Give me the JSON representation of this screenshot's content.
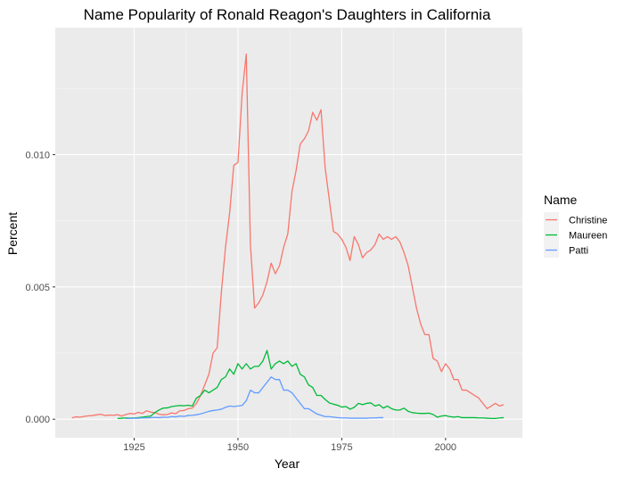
{
  "chart_data": {
    "type": "line",
    "title": "Name Popularity of Ronald Reagon's Daughters in California",
    "xlabel": "Year",
    "ylabel": "Percent",
    "xlim": [
      1906.0,
      2018.5
    ],
    "ylim": [
      -0.0007,
      0.0148
    ],
    "xticks": [
      1925,
      1950,
      1975,
      2000
    ],
    "xtick_labels": [
      "1925",
      "1950",
      "1975",
      "2000"
    ],
    "yticks": [
      0.0,
      0.005,
      0.01
    ],
    "ytick_labels": [
      "0.000",
      "0.005",
      "0.010"
    ],
    "grid": true,
    "legend": {
      "title": "Name",
      "position": "right"
    },
    "series": [
      {
        "name": "Christine",
        "color": "#F8766D",
        "points": [
          [
            1910,
            5e-05
          ],
          [
            1911,
            9e-05
          ],
          [
            1912,
            8e-05
          ],
          [
            1913,
            0.00011
          ],
          [
            1914,
            0.00013
          ],
          [
            1915,
            0.00014
          ],
          [
            1916,
            0.00017
          ],
          [
            1917,
            0.00019
          ],
          [
            1918,
            0.00014
          ],
          [
            1919,
            0.00016
          ],
          [
            1920,
            0.00015
          ],
          [
            1921,
            0.00017
          ],
          [
            1922,
            0.00012
          ],
          [
            1923,
            0.00018
          ],
          [
            1924,
            0.00022
          ],
          [
            1925,
            0.0002
          ],
          [
            1926,
            0.00026
          ],
          [
            1927,
            0.00022
          ],
          [
            1928,
            0.00032
          ],
          [
            1929,
            0.00027
          ],
          [
            1930,
            0.00025
          ],
          [
            1931,
            0.00019
          ],
          [
            1932,
            0.00017
          ],
          [
            1933,
            0.00018
          ],
          [
            1934,
            0.00024
          ],
          [
            1935,
            0.00021
          ],
          [
            1936,
            0.00032
          ],
          [
            1937,
            0.00033
          ],
          [
            1938,
            0.0004
          ],
          [
            1939,
            0.00042
          ],
          [
            1940,
            0.0006
          ],
          [
            1941,
            0.0009
          ],
          [
            1942,
            0.0013
          ],
          [
            1943,
            0.0017
          ],
          [
            1944,
            0.0025
          ],
          [
            1945,
            0.0027
          ],
          [
            1946,
            0.0048
          ],
          [
            1947,
            0.0065
          ],
          [
            1948,
            0.0078
          ],
          [
            1949,
            0.0096
          ],
          [
            1950,
            0.0097
          ],
          [
            1951,
            0.0123
          ],
          [
            1952,
            0.0138
          ],
          [
            1953,
            0.0066
          ],
          [
            1954,
            0.0042
          ],
          [
            1955,
            0.0044
          ],
          [
            1956,
            0.0047
          ],
          [
            1957,
            0.0052
          ],
          [
            1958,
            0.0059
          ],
          [
            1959,
            0.0055
          ],
          [
            1960,
            0.0058
          ],
          [
            1961,
            0.0065
          ],
          [
            1962,
            0.007
          ],
          [
            1963,
            0.0086
          ],
          [
            1964,
            0.0094
          ],
          [
            1965,
            0.0104
          ],
          [
            1966,
            0.0106
          ],
          [
            1967,
            0.0109
          ],
          [
            1968,
            0.0116
          ],
          [
            1969,
            0.0113
          ],
          [
            1970,
            0.0117
          ],
          [
            1971,
            0.0095
          ],
          [
            1972,
            0.0083
          ],
          [
            1973,
            0.0071
          ],
          [
            1974,
            0.007
          ],
          [
            1975,
            0.0068
          ],
          [
            1976,
            0.0065
          ],
          [
            1977,
            0.006
          ],
          [
            1978,
            0.0069
          ],
          [
            1979,
            0.0066
          ],
          [
            1980,
            0.0061
          ],
          [
            1981,
            0.0063
          ],
          [
            1982,
            0.0064
          ],
          [
            1983,
            0.0066
          ],
          [
            1984,
            0.007
          ],
          [
            1985,
            0.0068
          ],
          [
            1986,
            0.0069
          ],
          [
            1987,
            0.0068
          ],
          [
            1988,
            0.0069
          ],
          [
            1989,
            0.0067
          ],
          [
            1990,
            0.0063
          ],
          [
            1991,
            0.0058
          ],
          [
            1992,
            0.005
          ],
          [
            1993,
            0.0042
          ],
          [
            1994,
            0.0036
          ],
          [
            1995,
            0.0032
          ],
          [
            1996,
            0.0032
          ],
          [
            1997,
            0.0023
          ],
          [
            1998,
            0.0022
          ],
          [
            1999,
            0.0018
          ],
          [
            2000,
            0.0021
          ],
          [
            2001,
            0.0019
          ],
          [
            2002,
            0.0015
          ],
          [
            2003,
            0.0015
          ],
          [
            2004,
            0.0011
          ],
          [
            2005,
            0.0011
          ],
          [
            2006,
            0.001
          ],
          [
            2007,
            0.0009
          ],
          [
            2008,
            0.0008
          ],
          [
            2009,
            0.0006
          ],
          [
            2010,
            0.0004
          ],
          [
            2011,
            0.0005
          ],
          [
            2012,
            0.0006
          ],
          [
            2013,
            0.0005
          ],
          [
            2014,
            0.00055
          ]
        ]
      },
      {
        "name": "Maureen",
        "color": "#00BA38",
        "points": [
          [
            1921,
            3e-05
          ],
          [
            1922,
            4e-05
          ],
          [
            1923,
            5e-05
          ],
          [
            1924,
            4e-05
          ],
          [
            1925,
            5e-05
          ],
          [
            1926,
            6e-05
          ],
          [
            1927,
            8e-05
          ],
          [
            1928,
            0.0001
          ],
          [
            1929,
            0.00012
          ],
          [
            1930,
            0.00025
          ],
          [
            1931,
            0.00035
          ],
          [
            1932,
            0.00042
          ],
          [
            1933,
            0.00043
          ],
          [
            1934,
            0.00048
          ],
          [
            1935,
            0.0005
          ],
          [
            1936,
            0.00052
          ],
          [
            1937,
            0.00051
          ],
          [
            1938,
            0.00053
          ],
          [
            1939,
            0.0005
          ],
          [
            1940,
            0.0008
          ],
          [
            1941,
            0.0009
          ],
          [
            1942,
            0.0011
          ],
          [
            1943,
            0.001
          ],
          [
            1944,
            0.0011
          ],
          [
            1945,
            0.0012
          ],
          [
            1946,
            0.0015
          ],
          [
            1947,
            0.0016
          ],
          [
            1948,
            0.0019
          ],
          [
            1949,
            0.0017
          ],
          [
            1950,
            0.0021
          ],
          [
            1951,
            0.0019
          ],
          [
            1952,
            0.0021
          ],
          [
            1953,
            0.0019
          ],
          [
            1954,
            0.002
          ],
          [
            1955,
            0.002
          ],
          [
            1956,
            0.0022
          ],
          [
            1957,
            0.0026
          ],
          [
            1958,
            0.0019
          ],
          [
            1959,
            0.0021
          ],
          [
            1960,
            0.0022
          ],
          [
            1961,
            0.0021
          ],
          [
            1962,
            0.0022
          ],
          [
            1963,
            0.002
          ],
          [
            1964,
            0.0021
          ],
          [
            1965,
            0.0017
          ],
          [
            1966,
            0.0016
          ],
          [
            1967,
            0.0013
          ],
          [
            1968,
            0.0012
          ],
          [
            1969,
            0.0009
          ],
          [
            1970,
            0.0009
          ],
          [
            1971,
            0.00075
          ],
          [
            1972,
            0.00062
          ],
          [
            1973,
            0.00057
          ],
          [
            1974,
            0.00053
          ],
          [
            1975,
            0.00046
          ],
          [
            1976,
            0.00048
          ],
          [
            1977,
            0.00038
          ],
          [
            1978,
            0.00045
          ],
          [
            1979,
            0.0006
          ],
          [
            1980,
            0.00055
          ],
          [
            1981,
            0.0006
          ],
          [
            1982,
            0.00062
          ],
          [
            1983,
            0.0005
          ],
          [
            1984,
            0.00055
          ],
          [
            1985,
            0.00042
          ],
          [
            1986,
            0.0005
          ],
          [
            1987,
            0.0004
          ],
          [
            1988,
            0.00035
          ],
          [
            1989,
            0.00035
          ],
          [
            1990,
            0.00042
          ],
          [
            1991,
            0.0003
          ],
          [
            1992,
            0.00025
          ],
          [
            1993,
            0.00023
          ],
          [
            1994,
            0.00022
          ],
          [
            1995,
            0.00022
          ],
          [
            1996,
            0.00023
          ],
          [
            1997,
            0.00018
          ],
          [
            1998,
            8e-05
          ],
          [
            1999,
            0.00012
          ],
          [
            2000,
            0.00014
          ],
          [
            2001,
            0.0001
          ],
          [
            2002,
            8e-05
          ],
          [
            2003,
            0.0001
          ],
          [
            2004,
            6e-05
          ],
          [
            2005,
            6e-05
          ],
          [
            2006,
            6e-05
          ],
          [
            2007,
            6e-05
          ],
          [
            2008,
            5e-05
          ],
          [
            2009,
            5e-05
          ],
          [
            2010,
            4e-05
          ],
          [
            2011,
            3e-05
          ],
          [
            2012,
            3e-05
          ],
          [
            2013,
            5e-05
          ],
          [
            2014,
            6e-05
          ]
        ]
      },
      {
        "name": "Patti",
        "color": "#619CFF",
        "points": [
          [
            1923,
            3e-05
          ],
          [
            1924,
            3e-05
          ],
          [
            1925,
            4e-05
          ],
          [
            1926,
            4e-05
          ],
          [
            1927,
            5e-05
          ],
          [
            1928,
            5e-05
          ],
          [
            1929,
            6e-05
          ],
          [
            1930,
            7e-05
          ],
          [
            1931,
            6e-05
          ],
          [
            1932,
            8e-05
          ],
          [
            1933,
            7e-05
          ],
          [
            1934,
            0.0001
          ],
          [
            1935,
            9e-05
          ],
          [
            1936,
            0.00012
          ],
          [
            1937,
            0.00011
          ],
          [
            1938,
            0.00014
          ],
          [
            1939,
            0.00015
          ],
          [
            1940,
            0.00017
          ],
          [
            1941,
            0.0002
          ],
          [
            1942,
            0.00025
          ],
          [
            1943,
            0.0003
          ],
          [
            1944,
            0.00033
          ],
          [
            1945,
            0.00035
          ],
          [
            1946,
            0.00038
          ],
          [
            1947,
            0.00045
          ],
          [
            1948,
            0.0005
          ],
          [
            1949,
            0.00048
          ],
          [
            1950,
            0.0005
          ],
          [
            1951,
            0.00052
          ],
          [
            1952,
            0.0007
          ],
          [
            1953,
            0.0011
          ],
          [
            1954,
            0.001
          ],
          [
            1955,
            0.001
          ],
          [
            1956,
            0.0012
          ],
          [
            1957,
            0.0014
          ],
          [
            1958,
            0.0016
          ],
          [
            1959,
            0.0015
          ],
          [
            1960,
            0.0015
          ],
          [
            1961,
            0.0011
          ],
          [
            1962,
            0.0011
          ],
          [
            1963,
            0.001
          ],
          [
            1964,
            0.0008
          ],
          [
            1965,
            0.0006
          ],
          [
            1966,
            0.0004
          ],
          [
            1967,
            0.0004
          ],
          [
            1968,
            0.0003
          ],
          [
            1969,
            0.0002
          ],
          [
            1970,
            0.00015
          ],
          [
            1971,
            0.0001
          ],
          [
            1972,
            0.0001
          ],
          [
            1973,
            8e-05
          ],
          [
            1974,
            6e-05
          ],
          [
            1975,
            5e-05
          ],
          [
            1976,
            5e-05
          ],
          [
            1977,
            4e-05
          ],
          [
            1978,
            4e-05
          ],
          [
            1979,
            4e-05
          ],
          [
            1980,
            4e-05
          ],
          [
            1981,
            4e-05
          ],
          [
            1982,
            5e-05
          ],
          [
            1983,
            5e-05
          ],
          [
            1984,
            6e-05
          ],
          [
            1985,
            6e-05
          ]
        ]
      }
    ]
  }
}
